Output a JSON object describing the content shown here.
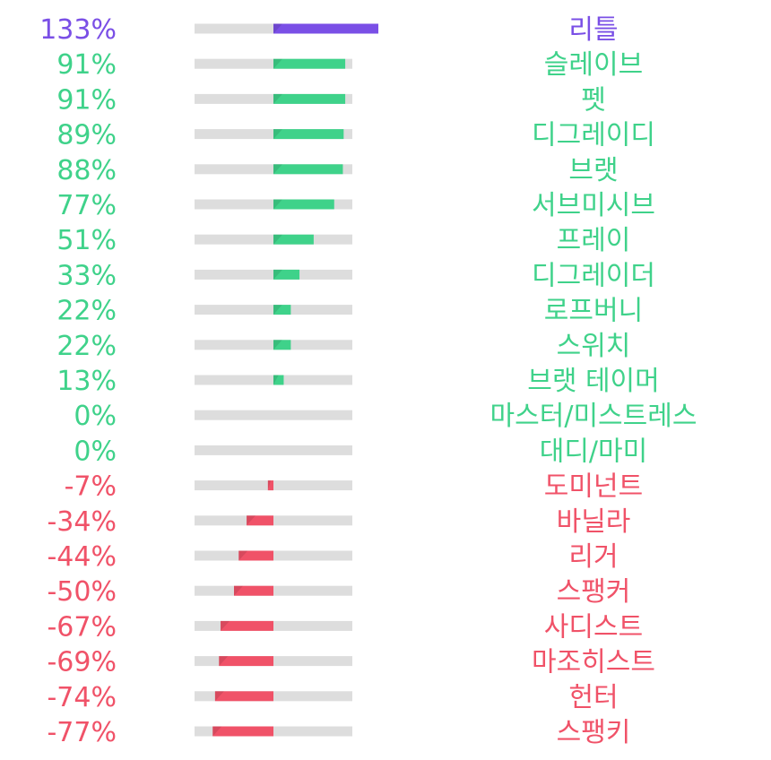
{
  "chart_data": {
    "type": "bar",
    "orientation": "horizontal",
    "unit": "%",
    "xlim": [
      -100,
      133
    ],
    "categories": [
      "리틀",
      "슬레이브",
      "펫",
      "디그레이디",
      "브랫",
      "서브미시브",
      "프레이",
      "디그레이더",
      "로프버니",
      "스위치",
      "브랫 테이머",
      "마스터/미스트레스",
      "대디/마미",
      "도미넌트",
      "바닐라",
      "리거",
      "스팽커",
      "사디스트",
      "마조히스트",
      "헌터",
      "스팽키"
    ],
    "values": [
      133,
      91,
      91,
      89,
      88,
      77,
      51,
      33,
      22,
      22,
      13,
      0,
      0,
      -7,
      -34,
      -44,
      -50,
      -67,
      -69,
      -74,
      -77
    ],
    "value_labels": [
      "133%",
      "91%",
      "91%",
      "89%",
      "88%",
      "77%",
      "51%",
      "33%",
      "22%",
      "22%",
      "13%",
      "0%",
      "0%",
      "-7%",
      "-34%",
      "-44%",
      "-50%",
      "-67%",
      "-69%",
      "-74%",
      "-77%"
    ],
    "title": "",
    "xlabel": "",
    "ylabel": "",
    "grid": false,
    "legend": "none"
  },
  "colors": {
    "top": "#7a4fe6",
    "positive": "#3fd28a",
    "negative": "#f05268",
    "track": "#dddddd"
  }
}
